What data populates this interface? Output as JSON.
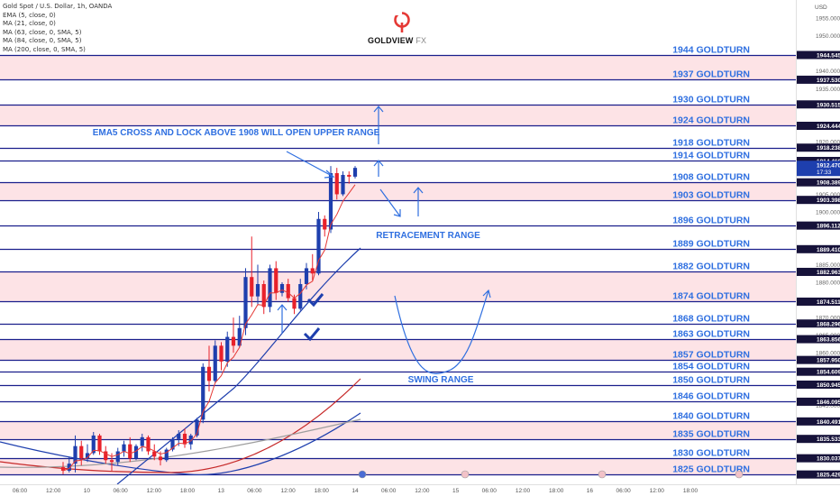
{
  "chart_title": "Gold Spot / U.S. Dollar, 1h, OANDA",
  "indicators": [
    "EMA (5, close, 0)",
    "MA (21, close, 0)",
    "MA (63, close, 0, SMA, 5)",
    "MA (84, close, 0, SMA, 5)",
    "MA (200, close, 0, SMA, 5)"
  ],
  "brand": {
    "name": "GOLDVIEW",
    "suffix": "FX"
  },
  "currency": "USD",
  "colors": {
    "bull": "#1e3fae",
    "bear": "#e8212a",
    "level_line": "#1a1f8c",
    "band": "#fde3e6",
    "annotation": "#2f6fe0",
    "ema5": "#e53935",
    "ma21": "#1e3fae",
    "ma63": "#c62828",
    "ma84": "#9e9e9e",
    "ma200": "#1e3fae",
    "price_tag": "#1e3fae"
  },
  "chart_data": {
    "type": "candlestick",
    "title": "Gold Spot / U.S. Dollar, 1h, OANDA",
    "ylim": [
      1824,
      1957
    ],
    "y_ticks": [
      1955,
      1950,
      1940,
      1935,
      1920,
      1905,
      1900,
      1885,
      1880,
      1870,
      1865,
      1860,
      1845,
      1830,
      1825
    ],
    "x_ticks": [
      "06:00",
      "12:00",
      "10",
      "06:00",
      "12:00",
      "18:00",
      "13",
      "06:00",
      "12:00",
      "18:00",
      "14",
      "06:00",
      "12:00",
      "15",
      "06:00",
      "12:00",
      "18:00",
      "16",
      "06:00",
      "12:00",
      "18:00"
    ],
    "current_price": {
      "value": "1912.470",
      "time": "17:33"
    },
    "levels": [
      {
        "label": "1944 GOLDTURN",
        "value": 1944.545,
        "tag": "1944.545"
      },
      {
        "label": "1937 GOLDTURN",
        "value": 1937.53,
        "tag": "1937.530"
      },
      {
        "label": "1930 GOLDTURN",
        "value": 1930.515,
        "tag": "1930.515"
      },
      {
        "label": "1924 GOLDTURN",
        "value": 1924.444,
        "tag": "1924.444"
      },
      {
        "label": "1918 GOLDTURN",
        "value": 1918.238,
        "tag": "1918.238"
      },
      {
        "label": "1914 GOLDTURN",
        "value": 1914.46,
        "tag": "1914.460"
      },
      {
        "label": "1908 GOLDTURN",
        "value": 1908.389,
        "tag": "1908.389"
      },
      {
        "label": "1903 GOLDTURN",
        "value": 1903.398,
        "tag": "1903.398"
      },
      {
        "label": "1896 GOLDTURN",
        "value": 1896.112,
        "tag": "1896.112"
      },
      {
        "label": "1889 GOLDTURN",
        "value": 1889.41,
        "tag": "1889.410"
      },
      {
        "label": "1882 GOLDTURN",
        "value": 1882.963,
        "tag": "1882.963"
      },
      {
        "label": "1874 GOLDTURN",
        "value": 1874.511,
        "tag": "1874.511"
      },
      {
        "label": "1868 GOLDTURN",
        "value": 1868.296,
        "tag": "1868.296"
      },
      {
        "label": "1863 GOLDTURN",
        "value": 1863.856,
        "tag": "1863.856"
      },
      {
        "label": "1857 GOLDTURN",
        "value": 1857.95,
        "tag": "1857.950"
      },
      {
        "label": "1854 GOLDTURN",
        "value": 1854.609,
        "tag": "1854.609"
      },
      {
        "label": "1850 GOLDTURN",
        "value": 1850.945,
        "tag": "1850.945"
      },
      {
        "label": "1846 GOLDTURN",
        "value": 1846.095,
        "tag": "1846.095"
      },
      {
        "label": "1840 GOLDTURN",
        "value": 1840.491,
        "tag": "1840.491"
      },
      {
        "label": "1835 GOLDTURN",
        "value": 1835.533,
        "tag": "1835.533"
      },
      {
        "label": "1830 GOLDTURN",
        "value": 1830.037,
        "tag": "1830.037"
      },
      {
        "label": "1825 GOLDTURN",
        "value": 1825.429,
        "tag": "1825.429"
      }
    ],
    "bands": [
      [
        1937.53,
        1944.545
      ],
      [
        1924.444,
        1930.515
      ],
      [
        1903.398,
        1908.389
      ],
      [
        1874.511,
        1882.963
      ],
      [
        1857.95,
        1863.856
      ],
      [
        1835.533,
        1840.491
      ],
      [
        1825.429,
        1830.037
      ]
    ],
    "candles": [
      {
        "o": 1827.5,
        "h": 1829.0,
        "l": 1825.5,
        "c": 1826.5
      },
      {
        "o": 1826.5,
        "h": 1830.5,
        "l": 1826.0,
        "c": 1828.5
      },
      {
        "o": 1828.5,
        "h": 1836.5,
        "l": 1826.0,
        "c": 1833.5
      },
      {
        "o": 1833.5,
        "h": 1835.0,
        "l": 1828.0,
        "c": 1830.0
      },
      {
        "o": 1830.0,
        "h": 1834.0,
        "l": 1829.0,
        "c": 1831.5
      },
      {
        "o": 1831.5,
        "h": 1837.5,
        "l": 1831.0,
        "c": 1836.5
      },
      {
        "o": 1836.5,
        "h": 1837.0,
        "l": 1831.0,
        "c": 1832.0
      },
      {
        "o": 1832.0,
        "h": 1833.5,
        "l": 1828.5,
        "c": 1829.5
      },
      {
        "o": 1829.5,
        "h": 1831.5,
        "l": 1826.5,
        "c": 1829.0
      },
      {
        "o": 1829.0,
        "h": 1833.0,
        "l": 1828.0,
        "c": 1832.0
      },
      {
        "o": 1832.0,
        "h": 1835.0,
        "l": 1830.5,
        "c": 1834.0
      },
      {
        "o": 1834.0,
        "h": 1836.0,
        "l": 1829.0,
        "c": 1830.0
      },
      {
        "o": 1830.0,
        "h": 1834.0,
        "l": 1829.5,
        "c": 1833.5
      },
      {
        "o": 1833.5,
        "h": 1837.0,
        "l": 1832.0,
        "c": 1836.0
      },
      {
        "o": 1836.0,
        "h": 1836.5,
        "l": 1831.0,
        "c": 1832.0
      },
      {
        "o": 1832.0,
        "h": 1834.0,
        "l": 1829.5,
        "c": 1830.5
      },
      {
        "o": 1830.5,
        "h": 1832.0,
        "l": 1828.0,
        "c": 1829.5
      },
      {
        "o": 1829.5,
        "h": 1833.0,
        "l": 1829.0,
        "c": 1832.5
      },
      {
        "o": 1832.5,
        "h": 1836.0,
        "l": 1832.0,
        "c": 1835.5
      },
      {
        "o": 1835.5,
        "h": 1838.0,
        "l": 1833.5,
        "c": 1837.0
      },
      {
        "o": 1837.0,
        "h": 1838.5,
        "l": 1833.0,
        "c": 1834.0
      },
      {
        "o": 1834.0,
        "h": 1837.0,
        "l": 1832.5,
        "c": 1836.5
      },
      {
        "o": 1836.5,
        "h": 1841.5,
        "l": 1836.0,
        "c": 1841.0
      },
      {
        "o": 1841.0,
        "h": 1857.0,
        "l": 1840.0,
        "c": 1856.0
      },
      {
        "o": 1856.0,
        "h": 1862.0,
        "l": 1849.0,
        "c": 1852.0
      },
      {
        "o": 1852.0,
        "h": 1863.5,
        "l": 1851.5,
        "c": 1862.0
      },
      {
        "o": 1862.0,
        "h": 1863.0,
        "l": 1855.0,
        "c": 1857.5
      },
      {
        "o": 1857.5,
        "h": 1866.0,
        "l": 1856.0,
        "c": 1864.5
      },
      {
        "o": 1864.5,
        "h": 1870.0,
        "l": 1860.0,
        "c": 1862.0
      },
      {
        "o": 1862.0,
        "h": 1870.5,
        "l": 1861.5,
        "c": 1867.0
      },
      {
        "o": 1867.0,
        "h": 1884.0,
        "l": 1865.0,
        "c": 1881.5
      },
      {
        "o": 1881.5,
        "h": 1893.0,
        "l": 1873.0,
        "c": 1876.0
      },
      {
        "o": 1876.0,
        "h": 1885.0,
        "l": 1873.5,
        "c": 1879.5
      },
      {
        "o": 1879.5,
        "h": 1880.5,
        "l": 1871.0,
        "c": 1873.0
      },
      {
        "o": 1873.0,
        "h": 1885.0,
        "l": 1871.5,
        "c": 1884.0
      },
      {
        "o": 1884.0,
        "h": 1886.0,
        "l": 1875.0,
        "c": 1877.0
      },
      {
        "o": 1877.0,
        "h": 1880.0,
        "l": 1876.0,
        "c": 1879.5
      },
      {
        "o": 1879.5,
        "h": 1881.0,
        "l": 1874.5,
        "c": 1875.5
      },
      {
        "o": 1875.5,
        "h": 1876.5,
        "l": 1871.0,
        "c": 1872.5
      },
      {
        "o": 1872.5,
        "h": 1881.0,
        "l": 1872.0,
        "c": 1879.5
      },
      {
        "o": 1879.5,
        "h": 1885.5,
        "l": 1878.0,
        "c": 1884.0
      },
      {
        "o": 1884.0,
        "h": 1888.0,
        "l": 1880.5,
        "c": 1882.5
      },
      {
        "o": 1882.5,
        "h": 1900.0,
        "l": 1882.0,
        "c": 1898.0
      },
      {
        "o": 1898.0,
        "h": 1899.0,
        "l": 1893.0,
        "c": 1895.0
      },
      {
        "o": 1895.0,
        "h": 1913.0,
        "l": 1894.0,
        "c": 1911.0
      },
      {
        "o": 1911.0,
        "h": 1912.5,
        "l": 1903.5,
        "c": 1905.0
      },
      {
        "o": 1905.0,
        "h": 1911.5,
        "l": 1904.5,
        "c": 1910.5
      },
      {
        "o": 1910.5,
        "h": 1911.5,
        "l": 1908.0,
        "c": 1910.0
      },
      {
        "o": 1910.0,
        "h": 1913.0,
        "l": 1909.5,
        "c": 1912.5
      }
    ],
    "annotations": [
      {
        "text": "EMA5 CROSS AND LOCK ABOVE 1908 WILL OPEN UPPER RANGE"
      },
      {
        "text": "RETRACEMENT RANGE"
      },
      {
        "text": "SWING RANGE"
      }
    ]
  }
}
